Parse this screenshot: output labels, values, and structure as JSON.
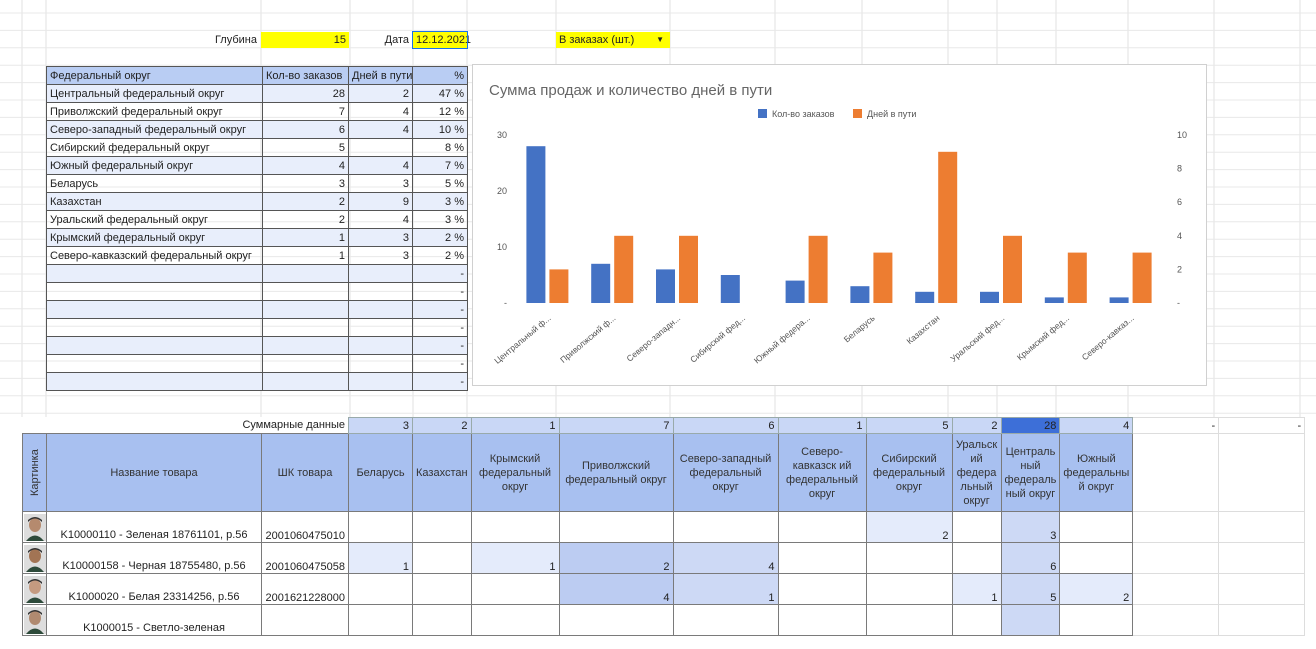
{
  "top": {
    "depth_label": "Глубина",
    "depth_value": "15",
    "date_label": "Дата",
    "date_value": "12.12.2021",
    "mode_value": "В заказах (шт.)"
  },
  "summary_table": {
    "headers": [
      "Федеральный округ",
      "Кол-во заказов",
      "Дней в пути",
      "%"
    ],
    "rows": [
      [
        "Центральный федеральный округ",
        "28",
        "2",
        "47 %"
      ],
      [
        "Приволжский федеральный округ",
        "7",
        "4",
        "12 %"
      ],
      [
        "Северо-западный федеральный округ",
        "6",
        "4",
        "10 %"
      ],
      [
        "Сибирский федеральный округ",
        "5",
        "",
        "8 %"
      ],
      [
        "Южный федеральный округ",
        "4",
        "4",
        "7 %"
      ],
      [
        "Беларусь",
        "3",
        "3",
        "5 %"
      ],
      [
        "Казахстан",
        "2",
        "9",
        "3 %"
      ],
      [
        "Уральский федеральный округ",
        "2",
        "4",
        "3 %"
      ],
      [
        "Крымский федеральный округ",
        "1",
        "3",
        "2 %"
      ],
      [
        "Северо-кавказский федеральный округ",
        "1",
        "3",
        "2 %"
      ],
      [
        "",
        "",
        "",
        "-"
      ],
      [
        "",
        "",
        "",
        "-"
      ],
      [
        "",
        "",
        "",
        "-"
      ],
      [
        "",
        "",
        "",
        "-"
      ],
      [
        "",
        "",
        "",
        "-"
      ],
      [
        "",
        "",
        "",
        "-"
      ],
      [
        "",
        "",
        "",
        "-"
      ]
    ]
  },
  "chart_data": {
    "type": "bar",
    "title": "Сумма продаж и количество дней в пути",
    "legend_position": "top",
    "categories": [
      "Центральный ф...",
      "Приволжский ф...",
      "Северо-западн...",
      "Сибирский фед...",
      "Южный федера...",
      "Беларусь",
      "Казахстан",
      "Уральский фед...",
      "Крымский фед...",
      "Северо-кавказ..."
    ],
    "series": [
      {
        "name": "Кол-во заказов",
        "color": "#4472c4",
        "axis": "left",
        "values": [
          28,
          7,
          6,
          5,
          4,
          3,
          2,
          2,
          1,
          1
        ]
      },
      {
        "name": "Дней в пути",
        "color": "#ed7d31",
        "axis": "right",
        "values": [
          2,
          4,
          4,
          0,
          4,
          3,
          9,
          4,
          3,
          3
        ]
      }
    ],
    "y_left": {
      "ticks": [
        "30",
        "20",
        "10",
        "-"
      ],
      "range": [
        0,
        30
      ]
    },
    "y_right": {
      "ticks": [
        "10",
        "8",
        "6",
        "4",
        "2",
        "-"
      ],
      "range": [
        0,
        10
      ]
    }
  },
  "bottom": {
    "summary_label": "Суммарные данные",
    "summary_values": [
      "3",
      "2",
      "1",
      "7",
      "6",
      "1",
      "5",
      "2",
      "28",
      "4",
      "-",
      "-"
    ],
    "headers": {
      "picture": "Картинка",
      "name": "Название товара",
      "barcode": "ШК товара",
      "regions": [
        "Беларусь",
        "Казахстан",
        "Крымский федеральный округ",
        "Приволжский федеральный округ",
        "Северо-западный федеральный округ",
        "Северо-кавказск ий федеральный округ",
        "Сибирский федеральный округ",
        "Уральск ий федера льный округ",
        "Централь ный федераль ный округ",
        "Южный федеральны й округ"
      ]
    },
    "items": [
      {
        "name": "K10000110 - Зеленая 18761101, р.56",
        "barcode": "2001060475010",
        "values": [
          "",
          "",
          "",
          "",
          "",
          "",
          "2",
          "",
          "3",
          ""
        ]
      },
      {
        "name": "K10000158 - Черная 18755480, р.56",
        "barcode": "2001060475058",
        "values": [
          "1",
          "",
          "1",
          "2",
          "4",
          "",
          "",
          "",
          "6",
          ""
        ]
      },
      {
        "name": "K1000020 - Белая 23314256, р.56",
        "barcode": "2001621228000",
        "values": [
          "",
          "",
          "",
          "4",
          "1",
          "",
          "",
          "1",
          "5",
          "2"
        ]
      },
      {
        "name": "K1000015 - Светло-зеленая",
        "barcode": "",
        "values": [
          "",
          "",
          "",
          "",
          "",
          "",
          "",
          "",
          "",
          ""
        ]
      }
    ]
  }
}
